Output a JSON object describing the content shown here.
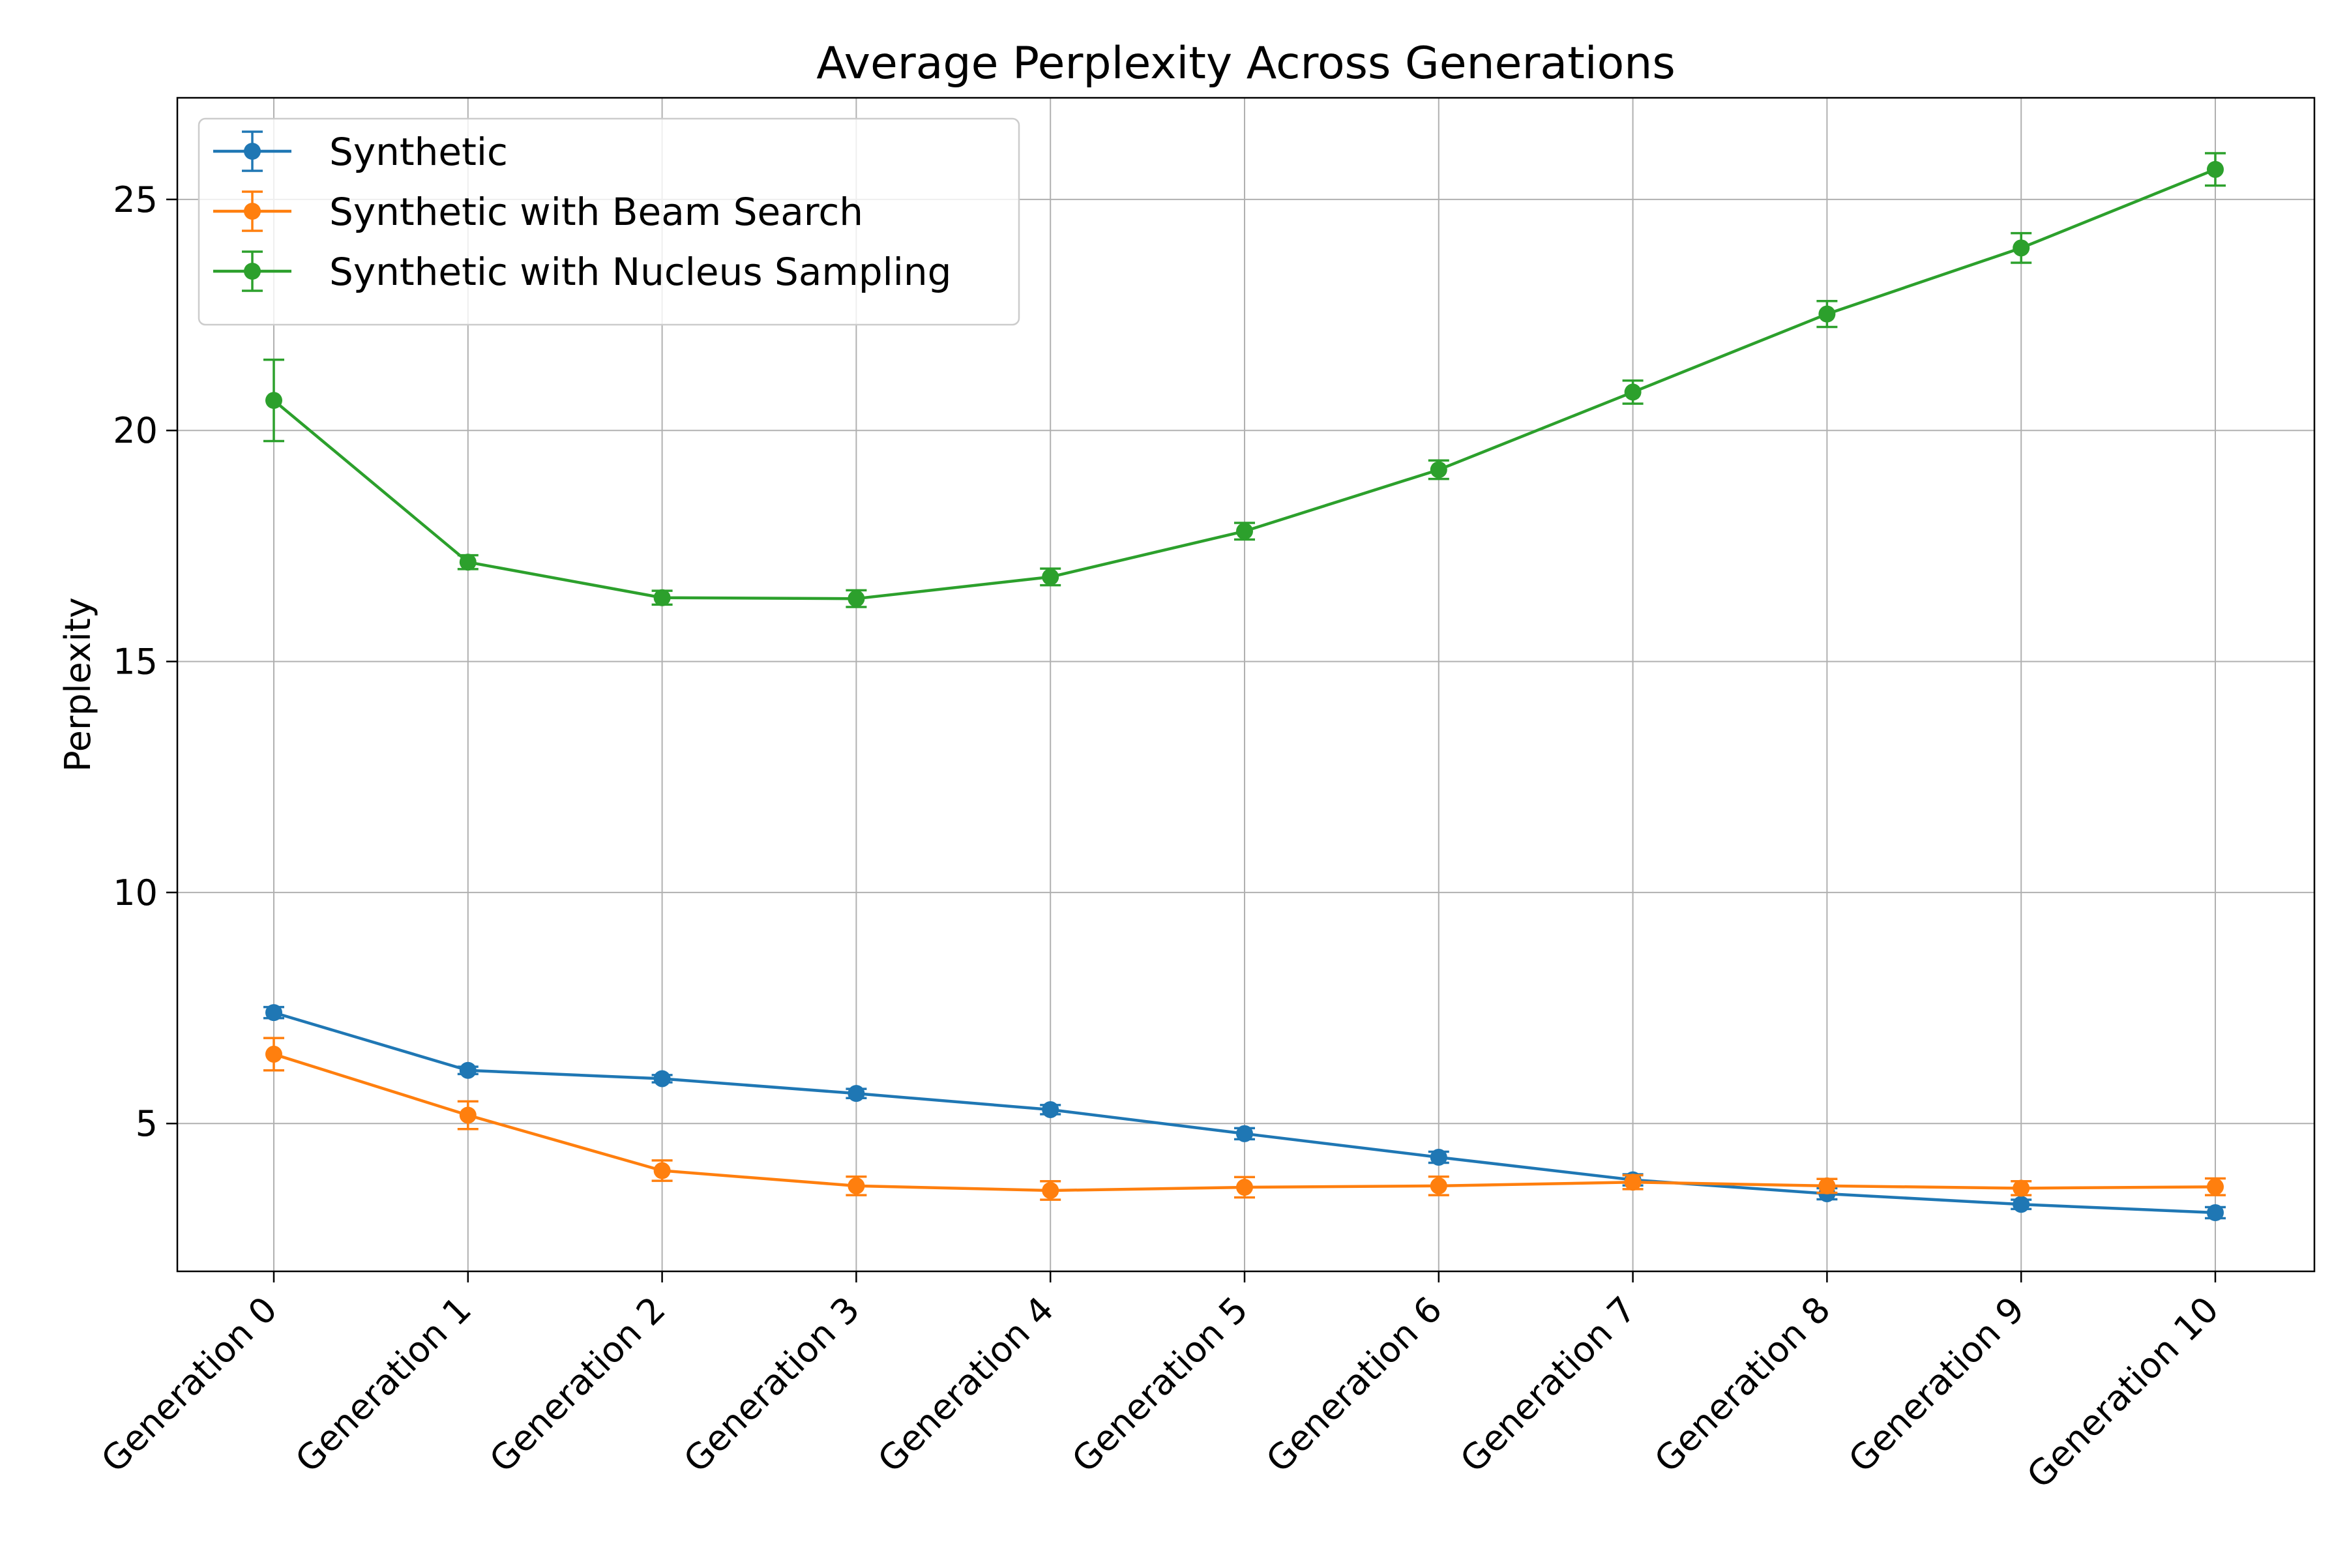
{
  "chart_data": {
    "type": "line",
    "title": "Average Perplexity Across Generations",
    "xlabel": "",
    "ylabel": "Perplexity",
    "categories": [
      "Generation 0",
      "Generation 1",
      "Generation 2",
      "Generation 3",
      "Generation 4",
      "Generation 5",
      "Generation 6",
      "Generation 7",
      "Generation 8",
      "Generation 9",
      "Generation 10"
    ],
    "ylim": [
      1.8,
      27.2
    ],
    "yticks": [
      5,
      10,
      15,
      20,
      25
    ],
    "grid": true,
    "legend_position": "top-left",
    "series": [
      {
        "name": "Synthetic",
        "color": "#1f77b4",
        "values": [
          7.4,
          6.15,
          5.97,
          5.65,
          5.3,
          4.78,
          4.27,
          3.78,
          3.48,
          3.25,
          3.07
        ],
        "errors": [
          0.12,
          0.08,
          0.08,
          0.1,
          0.1,
          0.12,
          0.12,
          0.12,
          0.12,
          0.1,
          0.12
        ]
      },
      {
        "name": "Synthetic with Beam Search",
        "color": "#ff7f0e",
        "values": [
          6.5,
          5.18,
          3.98,
          3.65,
          3.55,
          3.62,
          3.65,
          3.73,
          3.65,
          3.6,
          3.63
        ],
        "errors": [
          0.35,
          0.3,
          0.22,
          0.2,
          0.2,
          0.22,
          0.2,
          0.15,
          0.15,
          0.15,
          0.18
        ]
      },
      {
        "name": "Synthetic with Nucleus Sampling",
        "color": "#2ca02c",
        "values": [
          20.65,
          17.15,
          16.38,
          16.36,
          16.83,
          17.82,
          19.15,
          20.83,
          22.52,
          23.95,
          25.65
        ],
        "errors": [
          0.88,
          0.15,
          0.15,
          0.18,
          0.18,
          0.18,
          0.2,
          0.25,
          0.28,
          0.32,
          0.35
        ]
      }
    ]
  }
}
